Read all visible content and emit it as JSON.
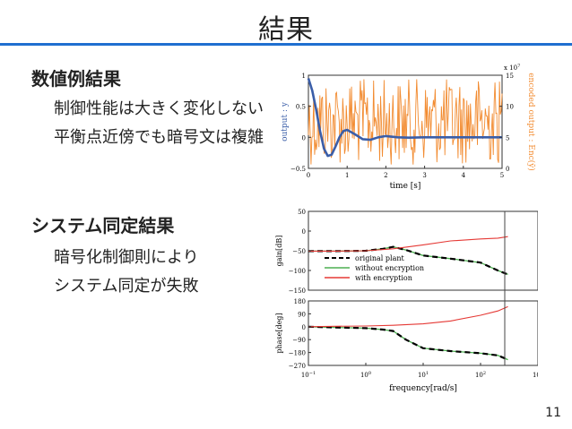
{
  "slide": {
    "title": "結果",
    "page_number": "11",
    "accent_color": "#1f6fd0"
  },
  "section1": {
    "heading": "数値例結果",
    "lines": [
      "制御性能は大きく変化しない",
      "平衡点近傍でも暗号文は複雑"
    ]
  },
  "section2": {
    "heading": "システム同定結果",
    "lines": [
      "暗号化制御則により",
      "システム同定が失敗"
    ]
  },
  "chart_data": [
    {
      "type": "line",
      "xlabel": "time [s]",
      "ylabel_left": "output : y",
      "ylabel_right": "encoded output : Enc(ȳ)",
      "xlim": [
        0,
        5
      ],
      "ylim_left": [
        -0.5,
        1
      ],
      "ylim_right": [
        0,
        15
      ],
      "right_axis_exponent": "x 10",
      "right_axis_exponent_power": "7",
      "x_ticks": [
        "0",
        "1",
        "2",
        "3",
        "4",
        "5"
      ],
      "y_ticks_left": [
        "−0.5",
        "0",
        "0.5",
        "1"
      ],
      "y_ticks_right": [
        "0",
        "5",
        "10",
        "15"
      ],
      "series": [
        {
          "color": "#3b5ea8",
          "x": [
            0,
            0.1,
            0.2,
            0.3,
            0.4,
            0.5,
            0.6,
            0.7,
            0.8,
            0.9,
            1.0,
            1.2,
            1.4,
            1.6,
            1.8,
            2.0,
            2.3,
            2.6,
            3.0,
            3.5,
            4.0,
            4.5,
            5.0
          ],
          "values": [
            0.95,
            0.75,
            0.45,
            0.1,
            -0.18,
            -0.3,
            -0.28,
            -0.15,
            0.0,
            0.1,
            0.12,
            0.05,
            -0.03,
            -0.04,
            0.0,
            0.02,
            0.0,
            -0.005,
            0.0,
            0.0,
            0.0,
            0.0,
            0.0
          ]
        },
        {
          "color": "#f28b30",
          "note_type": "noise"
        }
      ]
    },
    {
      "type": "line",
      "xlabel": "frequency[rad/s]",
      "xscale": "log",
      "xlim": [
        0.1,
        1000
      ],
      "x_ticks": [
        "10",
        "10",
        "10",
        "10",
        "10"
      ],
      "x_tick_powers": [
        "−1",
        "0",
        "1",
        "2",
        "3"
      ],
      "top": {
        "ylabel": "gain[dB]",
        "ylim": [
          -150,
          50
        ],
        "y_ticks": [
          "50",
          "0",
          "−50",
          "−100",
          "−150"
        ]
      },
      "bottom": {
        "ylabel": "phase[deg]",
        "ylim": [
          -270,
          180
        ],
        "y_ticks": [
          "180",
          "90",
          "0",
          "−90",
          "−180",
          "−270"
        ]
      },
      "legend": [
        "original plant",
        "without encryption",
        "with encryption"
      ],
      "series_colors": [
        "#000000",
        "#4caf50",
        "#e53935"
      ],
      "series": [
        {
          "name": "original plant",
          "x": [
            0.1,
            0.3,
            1,
            2,
            3,
            5,
            10,
            30,
            100,
            200,
            300
          ],
          "gain": [
            -51,
            -51,
            -50,
            -45,
            -40,
            -48,
            -62,
            -70,
            -80,
            -100,
            -110
          ],
          "phase": [
            0,
            -5,
            -10,
            -20,
            -30,
            -90,
            -150,
            -170,
            -185,
            -200,
            -230
          ]
        },
        {
          "name": "without encryption",
          "x": [
            0.1,
            0.3,
            1,
            2,
            3,
            5,
            10,
            30,
            100,
            200,
            300
          ],
          "gain": [
            -51,
            -51,
            -50,
            -45,
            -40,
            -48,
            -62,
            -70,
            -80,
            -100,
            -110
          ],
          "phase": [
            0,
            -5,
            -10,
            -20,
            -30,
            -90,
            -150,
            -170,
            -185,
            -200,
            -230
          ]
        },
        {
          "name": "with encryption",
          "x": [
            0.1,
            0.3,
            1,
            3,
            10,
            30,
            100,
            200,
            300
          ],
          "gain": [
            -51,
            -51,
            -50,
            -45,
            -35,
            -25,
            -20,
            -18,
            -14
          ],
          "phase": [
            0,
            3,
            5,
            10,
            20,
            40,
            80,
            110,
            140
          ]
        }
      ]
    }
  ]
}
